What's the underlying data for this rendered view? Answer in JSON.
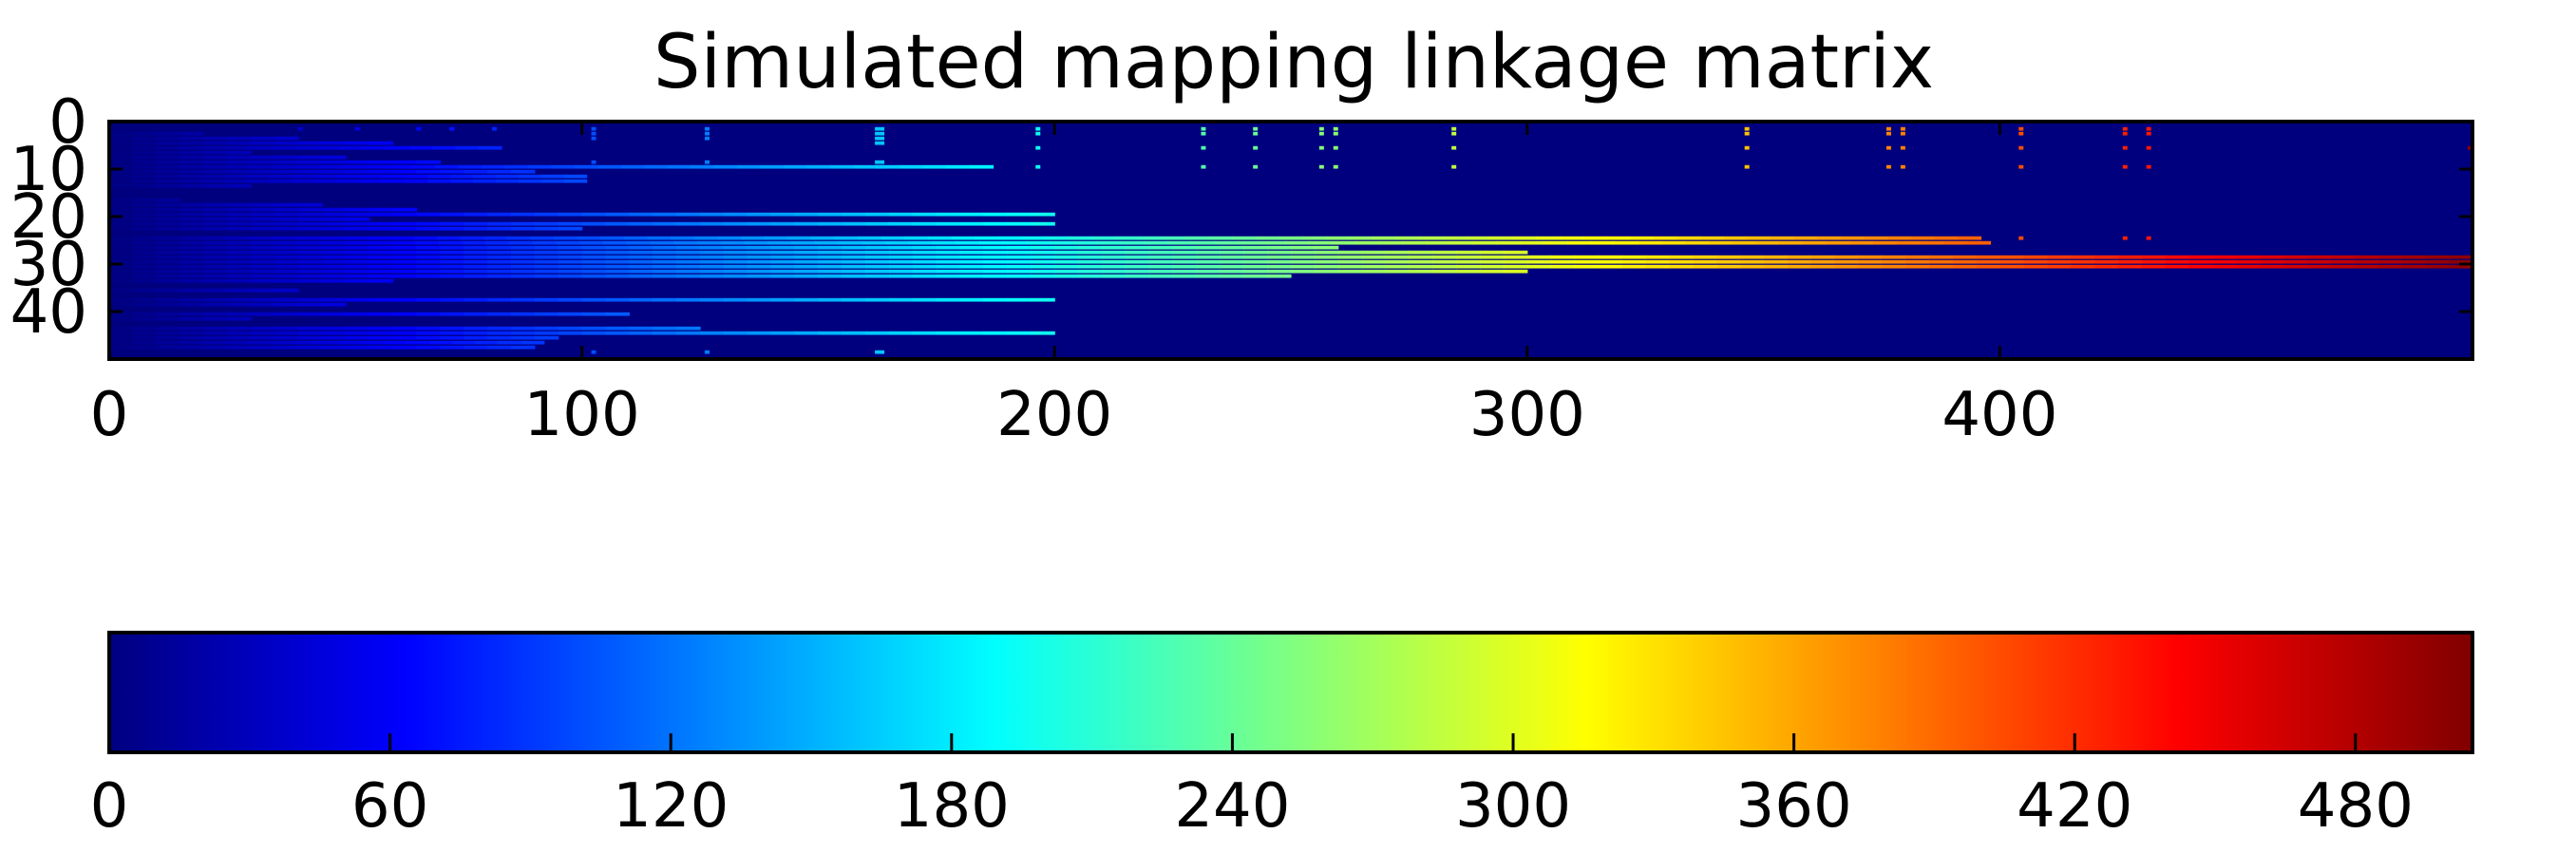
{
  "chart_data": [
    {
      "type": "heatmap",
      "title": "Simulated mapping linkage matrix",
      "xlabel": "",
      "ylabel": "",
      "xlim": [
        0,
        500
      ],
      "ylim": [
        50,
        0
      ],
      "x_ticks": [
        "0",
        "100",
        "200",
        "300",
        "400"
      ],
      "y_ticks": [
        "0",
        "10",
        "20",
        "30",
        "40"
      ],
      "colormap": "jet",
      "background_value": 0,
      "rows": [
        {
          "row": 2,
          "length": 20
        },
        {
          "row": 3,
          "length": 40
        },
        {
          "row": 4,
          "length": 60
        },
        {
          "row": 5,
          "length": 83
        },
        {
          "row": 6,
          "length": 30
        },
        {
          "row": 7,
          "length": 50
        },
        {
          "row": 8,
          "length": 70
        },
        {
          "row": 9,
          "length": 187
        },
        {
          "row": 10,
          "length": 90
        },
        {
          "row": 11,
          "length": 101
        },
        {
          "row": 12,
          "length": 101
        },
        {
          "row": 13,
          "length": 30
        },
        {
          "row": 16,
          "length": 15
        },
        {
          "row": 17,
          "length": 45
        },
        {
          "row": 18,
          "length": 65
        },
        {
          "row": 19,
          "length": 200
        },
        {
          "row": 20,
          "length": 55
        },
        {
          "row": 21,
          "length": 200
        },
        {
          "row": 22,
          "length": 100
        },
        {
          "row": 24,
          "length": 396
        },
        {
          "row": 25,
          "length": 398
        },
        {
          "row": 26,
          "length": 260
        },
        {
          "row": 27,
          "length": 300
        },
        {
          "row": 28,
          "length": 500
        },
        {
          "row": 29,
          "length": 500
        },
        {
          "row": 30,
          "length": 500
        },
        {
          "row": 31,
          "length": 300
        },
        {
          "row": 32,
          "length": 250
        },
        {
          "row": 33,
          "length": 60
        },
        {
          "row": 35,
          "length": 40
        },
        {
          "row": 37,
          "length": 200
        },
        {
          "row": 38,
          "length": 50
        },
        {
          "row": 40,
          "length": 110
        },
        {
          "row": 41,
          "length": 30
        },
        {
          "row": 43,
          "length": 125
        },
        {
          "row": 44,
          "length": 200
        },
        {
          "row": 45,
          "length": 95
        },
        {
          "row": 46,
          "length": 92
        },
        {
          "row": 47,
          "length": 90
        }
      ],
      "dot_columns": [
        {
          "col": 40,
          "rows": [
            1
          ]
        },
        {
          "col": 52,
          "rows": [
            1
          ]
        },
        {
          "col": 65,
          "rows": [
            1
          ]
        },
        {
          "col": 72,
          "rows": [
            1
          ]
        },
        {
          "col": 81,
          "rows": [
            1
          ]
        },
        {
          "col": 102,
          "rows": [
            1,
            2,
            3,
            8,
            9,
            48
          ]
        },
        {
          "col": 126,
          "rows": [
            1,
            2,
            3,
            8,
            9,
            48
          ]
        },
        {
          "col": 162,
          "rows": [
            1,
            2,
            3,
            4,
            8,
            9,
            48
          ]
        },
        {
          "col": 163,
          "rows": [
            1,
            2,
            3,
            4,
            8,
            9,
            48
          ]
        },
        {
          "col": 196,
          "rows": [
            1,
            2,
            5,
            9
          ]
        },
        {
          "col": 231,
          "rows": [
            1,
            2,
            5,
            9
          ]
        },
        {
          "col": 242,
          "rows": [
            1,
            2,
            5,
            9
          ]
        },
        {
          "col": 256,
          "rows": [
            1,
            2,
            5,
            9
          ]
        },
        {
          "col": 259,
          "rows": [
            1,
            2,
            5,
            9
          ]
        },
        {
          "col": 284,
          "rows": [
            1,
            2,
            5,
            9
          ]
        },
        {
          "col": 346,
          "rows": [
            1,
            2,
            5,
            9
          ]
        },
        {
          "col": 376,
          "rows": [
            1,
            2,
            5,
            9
          ]
        },
        {
          "col": 379,
          "rows": [
            1,
            2,
            5,
            9
          ]
        },
        {
          "col": 404,
          "rows": [
            1,
            2,
            5,
            9,
            24
          ]
        },
        {
          "col": 426,
          "rows": [
            1,
            2,
            5,
            9,
            24
          ]
        },
        {
          "col": 431,
          "rows": [
            1,
            2,
            5,
            9,
            24
          ]
        },
        {
          "col": 499,
          "rows": [
            5,
            28
          ]
        }
      ]
    },
    {
      "type": "colorbar",
      "orientation": "horizontal",
      "colormap": "jet",
      "range": [
        0,
        505
      ],
      "tick_values": [
        0,
        60,
        120,
        180,
        240,
        300,
        360,
        420,
        480
      ],
      "tick_labels": [
        "0",
        "60",
        "120",
        "180",
        "240",
        "300",
        "360",
        "420",
        "480"
      ]
    }
  ]
}
